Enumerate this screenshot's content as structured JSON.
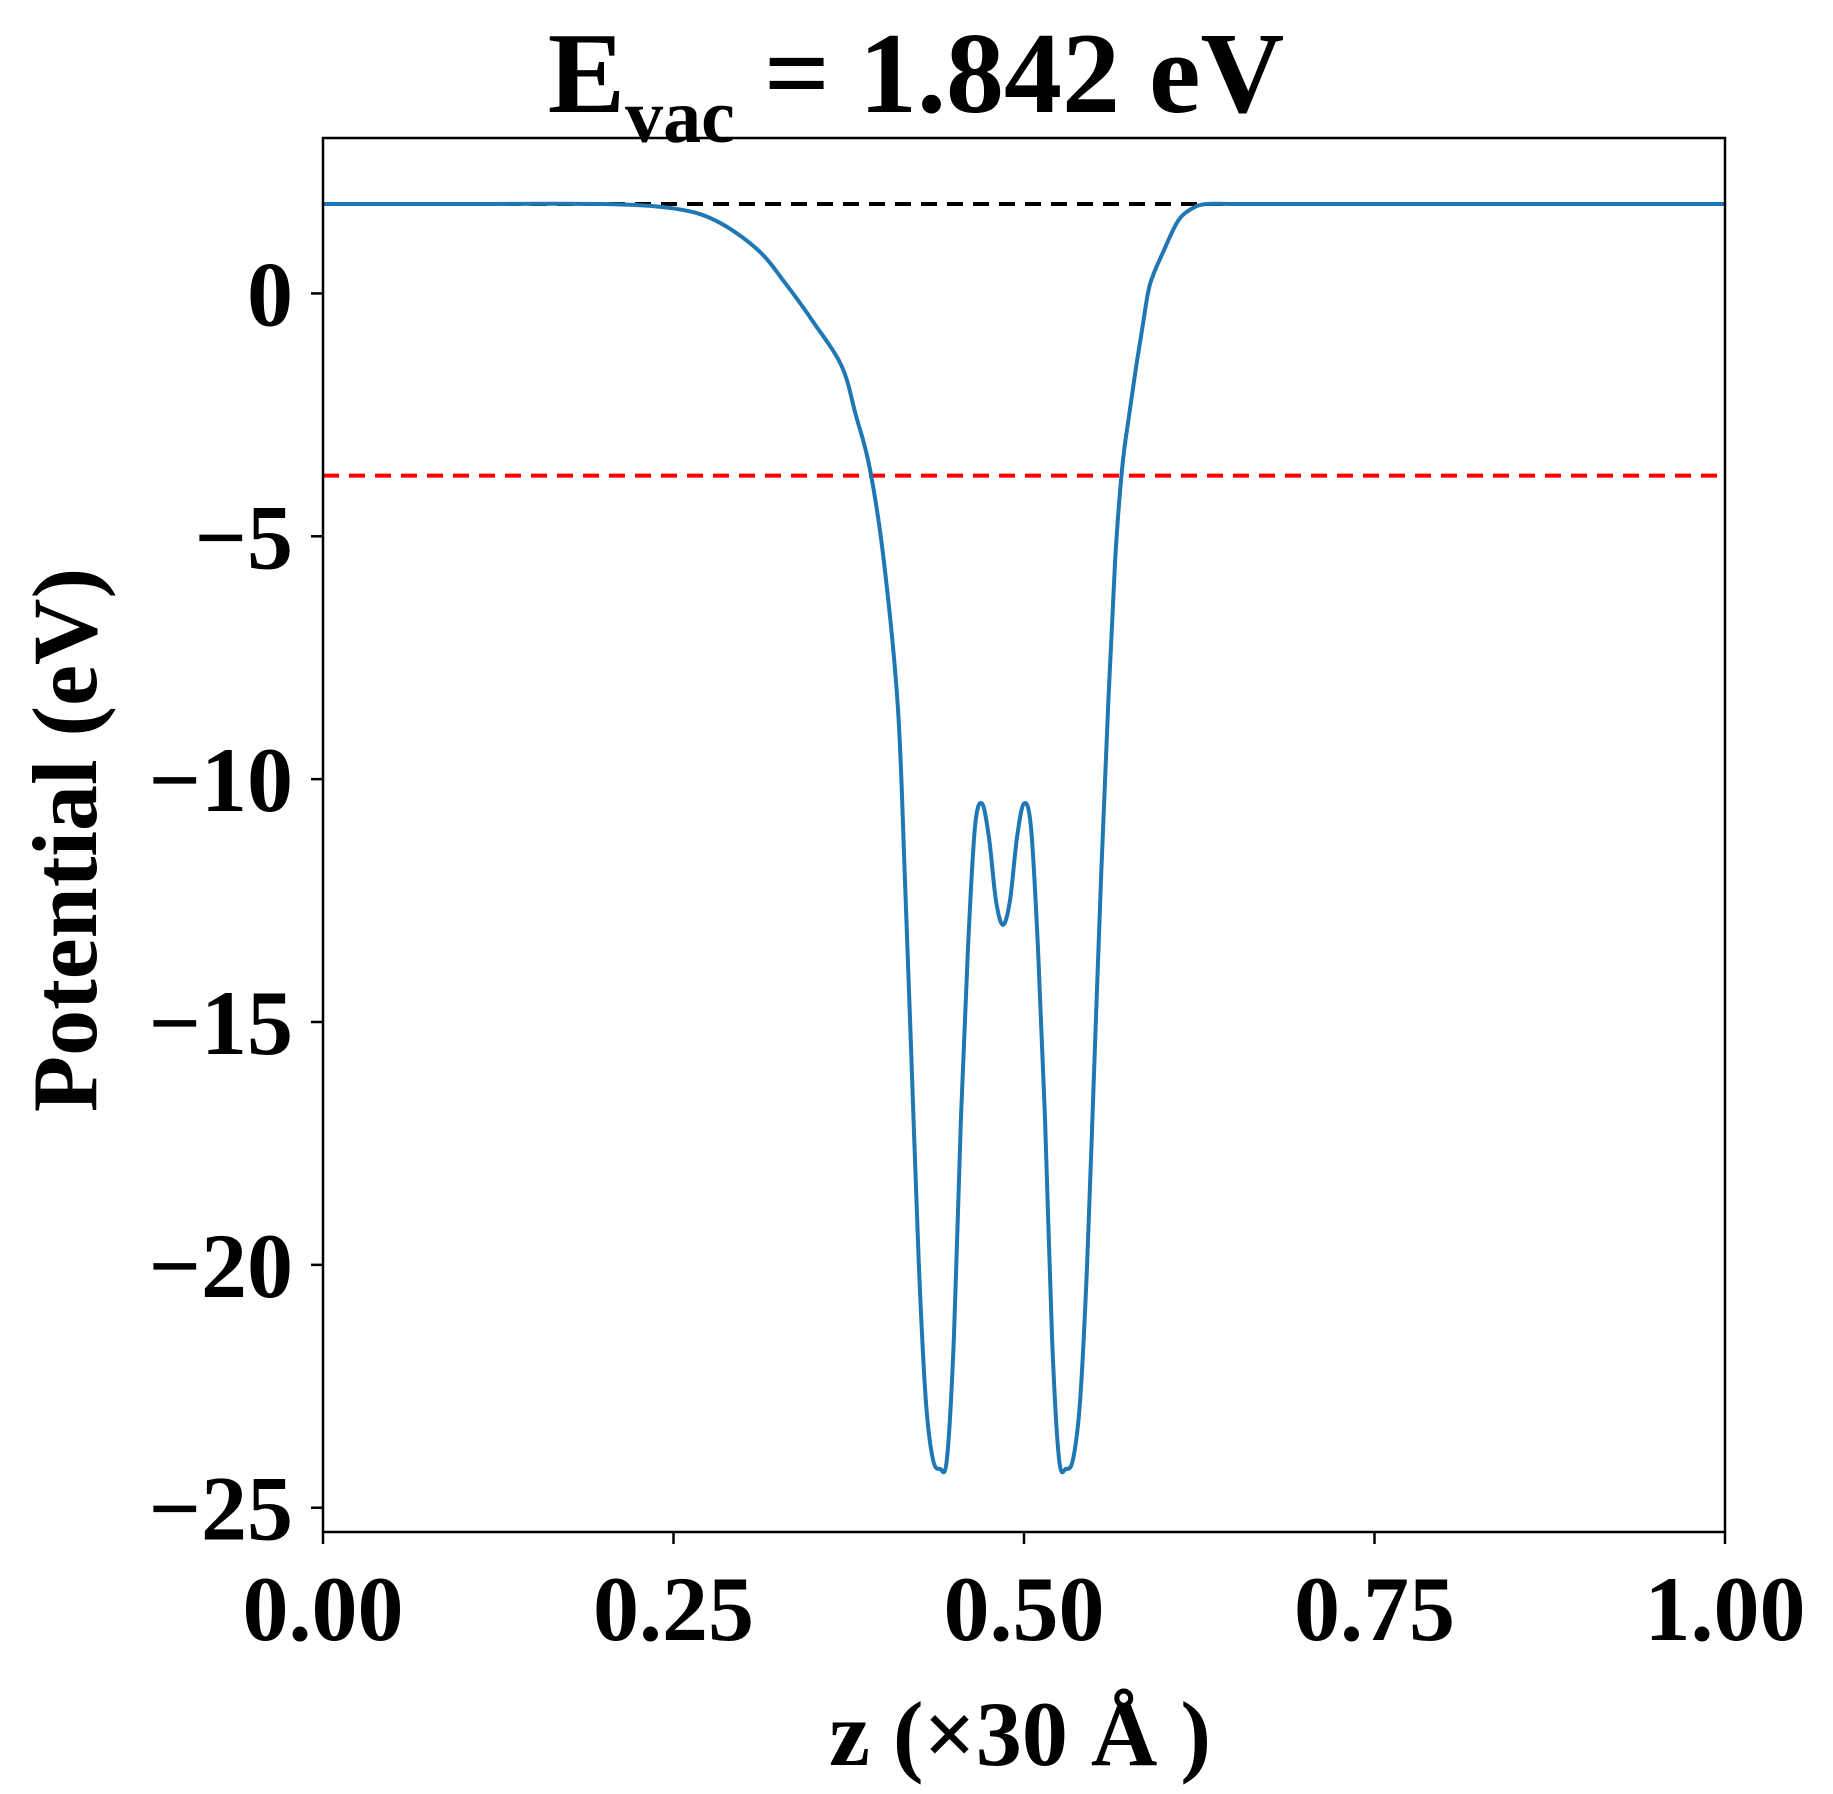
{
  "chart_data": {
    "type": "line",
    "title": {
      "main": "E",
      "subscript": "vac",
      "rest": " = 1.842 eV"
    },
    "xlabel": "z (×30 Å )",
    "ylabel": "Potential (eV)",
    "xlim": [
      0.0,
      1.0
    ],
    "ylim": [
      -25.5,
      3.2
    ],
    "xticks": [
      0.0,
      0.25,
      0.5,
      0.75,
      1.0
    ],
    "xtick_labels": [
      "0.00",
      "0.25",
      "0.50",
      "0.75",
      "1.00"
    ],
    "yticks": [
      0,
      -5,
      -10,
      -15,
      -20,
      -25
    ],
    "ytick_labels": [
      "0",
      "−5",
      "−10",
      "−15",
      "−20",
      "−25"
    ],
    "grid": false,
    "legend": "none",
    "hlines": [
      {
        "y": 1.842,
        "color": "#000000",
        "style": "dashed"
      },
      {
        "y": -3.75,
        "color": "#ff0000",
        "style": "dashed"
      }
    ],
    "series": [
      {
        "color": "#1f77b4",
        "x": [
          0.0,
          0.1,
          0.2,
          0.25,
          0.28,
          0.31,
          0.33,
          0.35,
          0.37,
          0.38,
          0.39,
          0.4,
          0.41,
          0.415,
          0.42,
          0.425,
          0.43,
          0.435,
          0.44,
          0.445,
          0.45,
          0.455,
          0.46,
          0.465,
          0.47,
          0.475,
          0.48,
          0.485,
          0.49,
          0.495,
          0.5,
          0.505,
          0.51,
          0.515,
          0.52,
          0.525,
          0.53,
          0.535,
          0.54,
          0.545,
          0.55,
          0.555,
          0.56,
          0.565,
          0.57,
          0.575,
          0.58,
          0.585,
          0.59,
          0.6,
          0.61,
          0.62,
          0.63,
          0.65,
          0.67,
          0.69,
          0.72,
          0.75,
          0.8,
          0.9,
          1.0
        ],
        "y": [
          1.842,
          1.842,
          1.84,
          1.75,
          1.5,
          0.9,
          0.2,
          -0.6,
          -1.5,
          -2.5,
          -3.6,
          -5.5,
          -8.5,
          -12.0,
          -16.0,
          -20.0,
          -22.8,
          -24.0,
          -24.2,
          -24.0,
          -21.5,
          -17.0,
          -13.5,
          -11.0,
          -10.5,
          -11.2,
          -12.5,
          -13.0,
          -12.5,
          -11.2,
          -10.5,
          -11.0,
          -13.5,
          -17.0,
          -21.5,
          -24.0,
          -24.2,
          -24.0,
          -22.8,
          -20.0,
          -16.0,
          -12.0,
          -8.5,
          -5.5,
          -3.6,
          -2.5,
          -1.5,
          -0.6,
          0.2,
          0.9,
          1.5,
          1.75,
          1.84,
          1.842,
          1.842,
          1.842,
          1.842,
          1.842,
          1.842,
          1.842,
          1.842
        ]
      }
    ]
  }
}
